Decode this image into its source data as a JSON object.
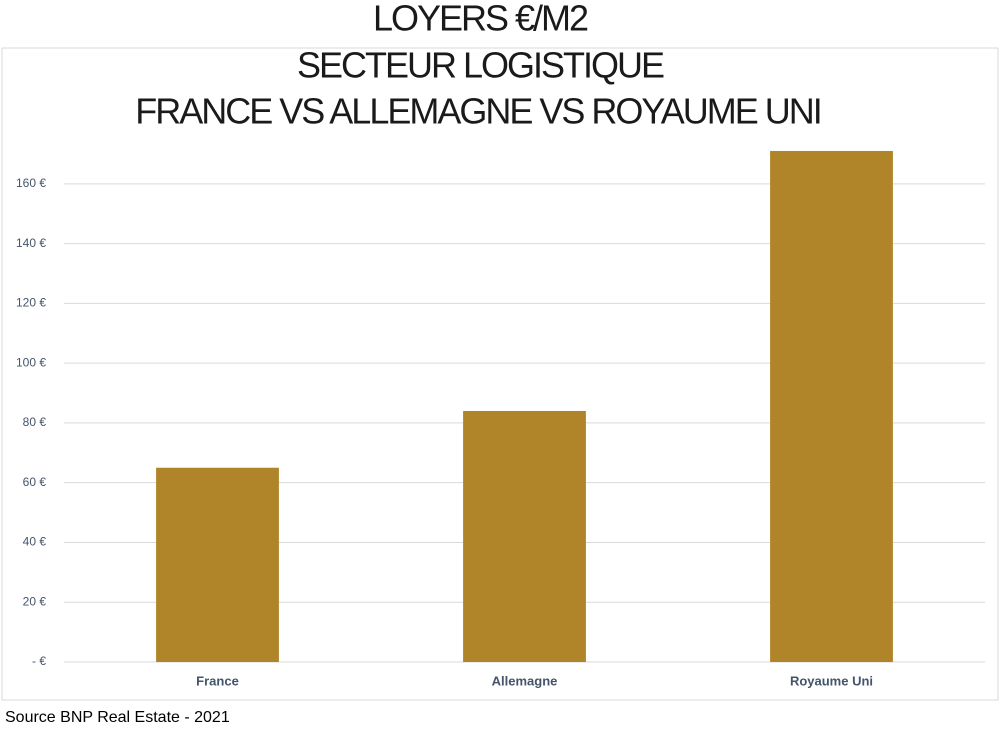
{
  "chart_data": {
    "type": "bar",
    "title": [
      "LOYERS €/M2",
      "SECTEUR LOGISTIQUE",
      "FRANCE VS ALLEMAGNE VS ROYAUME UNI"
    ],
    "categories": [
      "France",
      "Allemagne",
      "Royaume Uni"
    ],
    "values": [
      65,
      84,
      171
    ],
    "color": "#b08428",
    "ylim": [
      0,
      175
    ],
    "yticks": [
      {
        "value": 0,
        "label": "-  €"
      },
      {
        "value": 20,
        "label": "20 €"
      },
      {
        "value": 40,
        "label": "40 €"
      },
      {
        "value": 60,
        "label": "60 €"
      },
      {
        "value": 80,
        "label": "80 €"
      },
      {
        "value": 100,
        "label": "100 €"
      },
      {
        "value": 120,
        "label": "120 €"
      },
      {
        "value": 140,
        "label": "140 €"
      },
      {
        "value": 160,
        "label": "160 €"
      }
    ],
    "grid": true,
    "source": "Source BNP Real Estate - 2021"
  }
}
